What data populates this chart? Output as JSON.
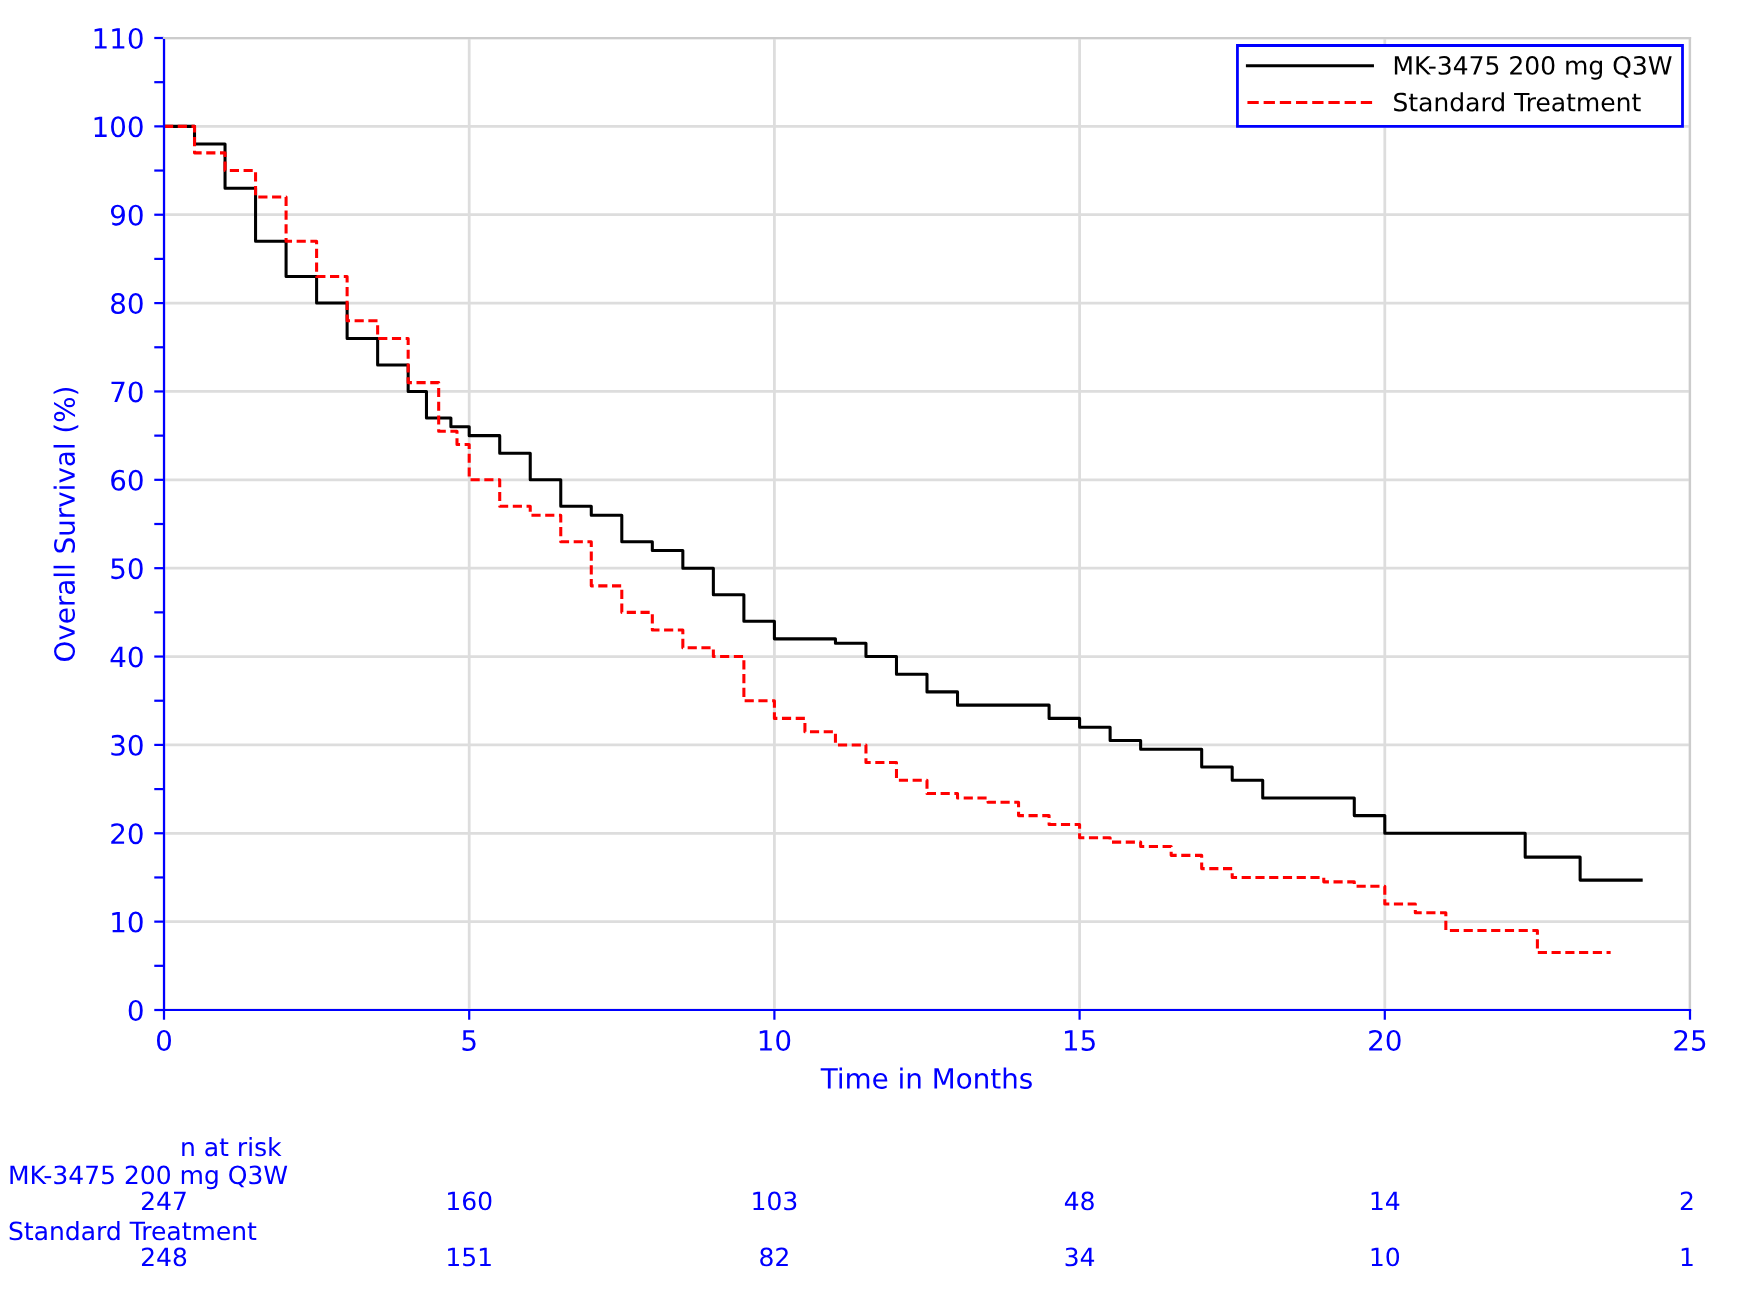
{
  "chart_data": {
    "type": "step",
    "xlabel": "Time in Months",
    "ylabel": "Overall Survival (%)",
    "xlim": [
      0,
      25
    ],
    "xticks": [
      0,
      5,
      10,
      15,
      20,
      25
    ],
    "ylim": [
      0,
      110
    ],
    "yticks": [
      0,
      {
        "value": 5,
        "label": null
      },
      10,
      {
        "value": 15,
        "label": null
      },
      20,
      {
        "value": 25,
        "label": null
      },
      30,
      {
        "value": 35,
        "label": null
      },
      40,
      {
        "value": 45,
        "label": null
      },
      50,
      {
        "value": 55,
        "label": null
      },
      60,
      {
        "value": 65,
        "label": null
      },
      70,
      {
        "value": 75,
        "label": null
      },
      80,
      {
        "value": 85,
        "label": null
      },
      90,
      {
        "value": 95,
        "label": null
      },
      100,
      {
        "value": 105,
        "label": null
      },
      110
    ],
    "grid": true,
    "legend": "top right",
    "marker": "none",
    "series": [
      {
        "name": "MK-3475 200 mg Q3W",
        "color": "#000000",
        "line_style": "solid",
        "x": [
          0,
          0.5,
          1,
          1.5,
          2,
          2.5,
          3,
          3.5,
          4,
          4.3,
          4.7,
          5,
          5.5,
          6,
          6.5,
          7,
          7.5,
          8,
          8.5,
          9,
          9.5,
          10,
          11,
          11.5,
          12,
          12.5,
          13,
          14,
          14.5,
          15,
          15.5,
          16,
          16.5,
          17,
          17.5,
          18,
          19,
          19.5,
          20,
          21,
          22,
          22.3,
          23,
          23.2,
          24.2
        ],
        "values": [
          100,
          98,
          93,
          87,
          83,
          80,
          76,
          73,
          70,
          67,
          66,
          65,
          63,
          60,
          57,
          56,
          53,
          52,
          50,
          47,
          44,
          42,
          41.5,
          40,
          38,
          36,
          34.5,
          34.5,
          33,
          32,
          30.5,
          29.5,
          29.5,
          27.5,
          26,
          24,
          24,
          22,
          20,
          20,
          20,
          17.3,
          17.3,
          14.7,
          14.7
        ]
      },
      {
        "name": "Standard Treatment",
        "color": "#ff0000",
        "line_style": "dashed",
        "x": [
          0,
          0.5,
          1,
          1.5,
          2,
          2.5,
          3,
          3.5,
          4,
          4.5,
          4.8,
          5,
          5.5,
          6,
          6.5,
          7,
          7.5,
          8,
          8.5,
          9,
          9.5,
          10,
          10.5,
          11,
          11.5,
          12,
          12.5,
          13,
          13.5,
          14,
          14.5,
          15,
          15.5,
          16,
          16.5,
          17,
          17.5,
          18,
          18.5,
          19,
          19.5,
          20,
          20.5,
          21,
          22,
          22.5,
          23.7
        ],
        "values": [
          100,
          97,
          95,
          92,
          87,
          83,
          78,
          76,
          71,
          65.5,
          64,
          60,
          57,
          56,
          53,
          48,
          45,
          43,
          41,
          40,
          35,
          33,
          31.5,
          30,
          28,
          26,
          24.5,
          24,
          23.5,
          22,
          21,
          19.5,
          19,
          18.5,
          17.5,
          16,
          15,
          15,
          15,
          14.5,
          14,
          12,
          11,
          9,
          9,
          6.5,
          6.5
        ]
      }
    ],
    "annotations": [
      "n at risk",
      "MK-3475 200 mg Q3W",
      "247",
      "160",
      "103",
      "48",
      "14",
      "2",
      "Standard Treatment",
      "248",
      "151",
      "82",
      "34",
      "10",
      "1"
    ]
  }
}
